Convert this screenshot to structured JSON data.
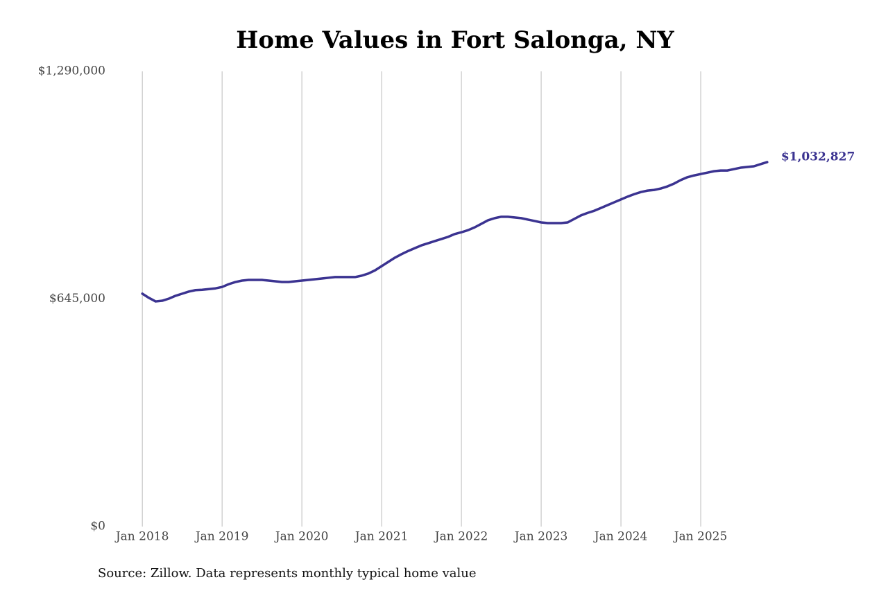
{
  "chart_data": {
    "type": "line",
    "title": "Home Values in Fort Salonga, NY",
    "source": "Source: Zillow. Data represents monthly typical home value",
    "x": [
      "2018-01",
      "2018-02",
      "2018-03",
      "2018-04",
      "2018-05",
      "2018-06",
      "2018-07",
      "2018-08",
      "2018-09",
      "2018-10",
      "2018-11",
      "2018-12",
      "2019-01",
      "2019-02",
      "2019-03",
      "2019-04",
      "2019-05",
      "2019-06",
      "2019-07",
      "2019-08",
      "2019-09",
      "2019-10",
      "2019-11",
      "2019-12",
      "2020-01",
      "2020-02",
      "2020-03",
      "2020-04",
      "2020-05",
      "2020-06",
      "2020-07",
      "2020-08",
      "2020-09",
      "2020-10",
      "2020-11",
      "2020-12",
      "2021-01",
      "2021-02",
      "2021-03",
      "2021-04",
      "2021-05",
      "2021-06",
      "2021-07",
      "2021-08",
      "2021-09",
      "2021-10",
      "2021-11",
      "2021-12",
      "2022-01",
      "2022-02",
      "2022-03",
      "2022-04",
      "2022-05",
      "2022-06",
      "2022-07",
      "2022-08",
      "2022-09",
      "2022-10",
      "2022-11",
      "2022-12",
      "2023-01",
      "2023-02",
      "2023-03",
      "2023-04",
      "2023-05",
      "2023-06",
      "2023-07",
      "2023-08",
      "2023-09",
      "2023-10",
      "2023-11",
      "2023-12",
      "2024-01",
      "2024-02",
      "2024-03",
      "2024-04",
      "2024-05",
      "2024-06",
      "2024-07",
      "2024-08",
      "2024-09",
      "2024-10",
      "2024-11",
      "2024-12",
      "2025-01",
      "2025-02",
      "2025-03",
      "2025-04",
      "2025-05",
      "2025-06",
      "2025-07",
      "2025-08",
      "2025-09",
      "2025-10",
      "2025-11"
    ],
    "series": [
      {
        "name": "Fort Salonga, NY",
        "color": "#3b3391",
        "values": [
          660000,
          648000,
          638000,
          640000,
          646000,
          654000,
          660000,
          666000,
          670000,
          671000,
          673000,
          675000,
          679000,
          687000,
          693000,
          697000,
          699000,
          699000,
          699000,
          697000,
          695000,
          693000,
          693000,
          695000,
          697000,
          699000,
          701000,
          703000,
          705000,
          707000,
          707000,
          707000,
          707000,
          711000,
          717000,
          726000,
          738000,
          750000,
          762000,
          772000,
          781000,
          789000,
          797000,
          803000,
          809000,
          815000,
          821000,
          829000,
          834000,
          840000,
          848000,
          858000,
          868000,
          874000,
          878000,
          878000,
          876000,
          874000,
          870000,
          866000,
          862000,
          860000,
          860000,
          860000,
          862000,
          872000,
          882000,
          889000,
          895000,
          903000,
          911000,
          919000,
          927000,
          935000,
          942000,
          948000,
          952000,
          954000,
          958000,
          964000,
          972000,
          982000,
          990000,
          995000,
          999000,
          1003000,
          1007000,
          1009000,
          1009000,
          1013000,
          1017000,
          1019000,
          1021000,
          1027000,
          1032827
        ],
        "value_labels": [
          null,
          null,
          null,
          null,
          null,
          null,
          null,
          null,
          null,
          null,
          null,
          null,
          null,
          null,
          null,
          null,
          null,
          null,
          null,
          null,
          null,
          null,
          null,
          null,
          null,
          null,
          null,
          null,
          null,
          null,
          null,
          null,
          null,
          null,
          null,
          null,
          null,
          null,
          null,
          null,
          null,
          null,
          null,
          null,
          null,
          null,
          null,
          null,
          null,
          null,
          null,
          null,
          null,
          null,
          null,
          null,
          null,
          null,
          null,
          null,
          null,
          null,
          null,
          null,
          null,
          null,
          null,
          null,
          null,
          null,
          null,
          null,
          null,
          null,
          null,
          null,
          null,
          null,
          null,
          null,
          null,
          null,
          null,
          null,
          null,
          null,
          null,
          null,
          null,
          null,
          null,
          null,
          null,
          null,
          "$1,032,827"
        ]
      }
    ],
    "xlim": [
      "2017-11",
      "2026-01"
    ],
    "xticks": [
      {
        "value": "2018-01",
        "label": "Jan 2018"
      },
      {
        "value": "2019-01",
        "label": "Jan 2019"
      },
      {
        "value": "2020-01",
        "label": "Jan 2020"
      },
      {
        "value": "2021-01",
        "label": "Jan 2021"
      },
      {
        "value": "2022-01",
        "label": "Jan 2022"
      },
      {
        "value": "2023-01",
        "label": "Jan 2023"
      },
      {
        "value": "2024-01",
        "label": "Jan 2024"
      },
      {
        "value": "2025-01",
        "label": "Jan 2025"
      }
    ],
    "ylim": [
      0,
      1290000
    ],
    "yticks": [
      {
        "value": 0,
        "label": "$0"
      },
      {
        "value": 645000,
        "label": "$645,000"
      },
      {
        "value": 1290000,
        "label": "$1,290,000"
      }
    ],
    "grid": "x"
  }
}
